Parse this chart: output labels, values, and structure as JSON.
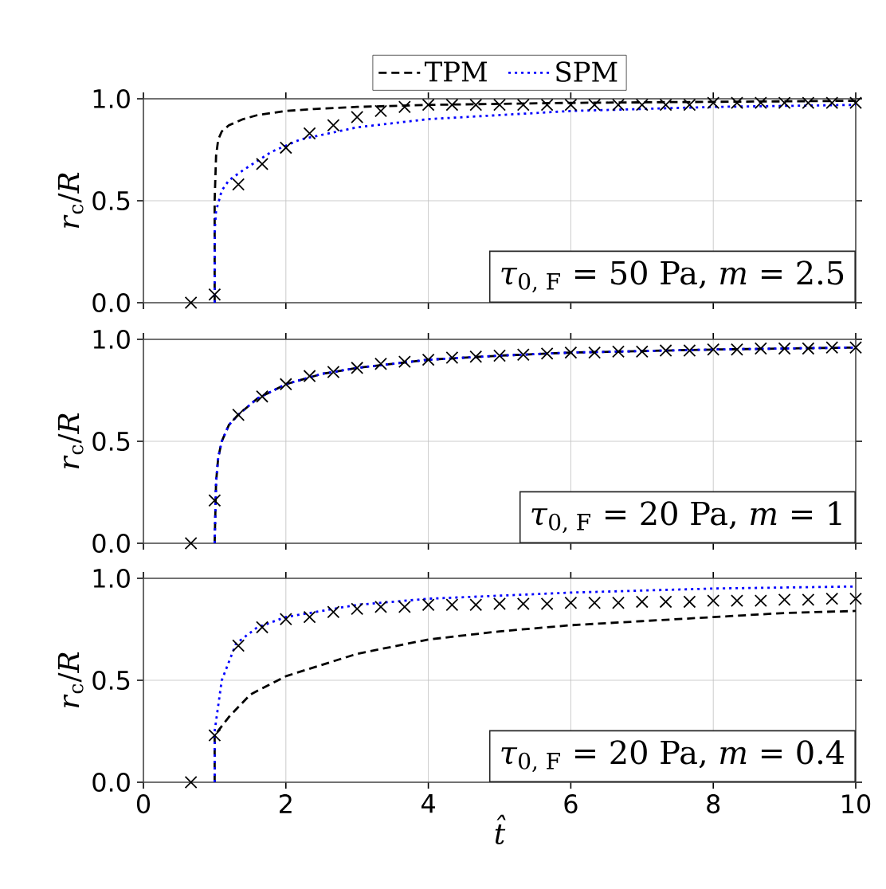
{
  "chart_data": [
    {
      "type": "line",
      "ylabel": "*r*$_{c}$/*R*",
      "xlim": [
        0,
        10
      ],
      "ylim": [
        0,
        1
      ],
      "xticks": [
        0,
        2,
        4,
        6,
        8,
        10
      ],
      "yticks": [
        {
          "value": 0,
          "label": "0.0"
        },
        {
          "value": 0.5,
          "label": "0.5"
        },
        {
          "value": 1,
          "label": "1.0"
        }
      ],
      "grid": true,
      "tick_labels": "y",
      "legend": "top",
      "annotations": [
        "*τ*$_{0, F}$ = 50 Pa, *m* = 2.5"
      ],
      "series": [
        {
          "type": "scatter",
          "marker": "cross",
          "color": "#000000",
          "x": [
            0.667,
            1.0,
            1.333,
            1.667,
            2.0,
            2.333,
            2.667,
            3.0,
            3.333,
            3.667,
            4.0,
            4.333,
            4.667,
            5.0,
            5.333,
            5.667,
            6.0,
            6.333,
            6.667,
            7.0,
            7.333,
            7.667,
            8.0,
            8.333,
            8.667,
            9.0,
            9.333,
            9.667,
            10.0
          ],
          "values": [
            0.0,
            0.04,
            0.58,
            0.68,
            0.76,
            0.83,
            0.87,
            0.91,
            0.94,
            0.96,
            0.97,
            0.97,
            0.97,
            0.97,
            0.97,
            0.97,
            0.97,
            0.97,
            0.97,
            0.97,
            0.97,
            0.97,
            0.98,
            0.98,
            0.98,
            0.98,
            0.98,
            0.98,
            0.98
          ]
        },
        {
          "name": "TPM",
          "line_style": "dashed",
          "color": "#000000",
          "x": [
            1.0,
            1.0,
            1.02,
            1.05,
            1.1,
            1.2,
            1.4,
            1.6,
            2.0,
            2.4,
            3.0,
            4.0,
            6.0,
            8.0,
            10.0
          ],
          "values": [
            0.0,
            0.5,
            0.72,
            0.8,
            0.84,
            0.87,
            0.9,
            0.92,
            0.94,
            0.95,
            0.96,
            0.97,
            0.98,
            0.985,
            0.99
          ]
        },
        {
          "name": "SPM",
          "line_style": "dotted",
          "color": "#0000ff",
          "x": [
            1.0,
            1.0,
            1.02,
            1.1,
            1.2,
            1.4,
            1.8,
            2.2,
            3.0,
            4.0,
            5.0,
            6.0,
            8.0,
            10.0
          ],
          "values": [
            0.0,
            0.35,
            0.45,
            0.55,
            0.6,
            0.65,
            0.74,
            0.8,
            0.86,
            0.9,
            0.92,
            0.94,
            0.96,
            0.97
          ]
        }
      ]
    },
    {
      "type": "line",
      "ylabel": "*r*$_{c}$/*R*",
      "xlim": [
        0,
        10
      ],
      "ylim": [
        0,
        1
      ],
      "xticks": [
        0,
        2,
        4,
        6,
        8,
        10
      ],
      "yticks": [
        {
          "value": 0,
          "label": "0.0"
        },
        {
          "value": 0.5,
          "label": "0.5"
        },
        {
          "value": 1,
          "label": "1.0"
        }
      ],
      "grid": true,
      "tick_labels": "y",
      "annotations": [
        "*τ*$_{0, F}$ = 20 Pa, *m* = 1"
      ],
      "series": [
        {
          "type": "scatter",
          "marker": "cross",
          "color": "#000000",
          "x": [
            0.667,
            1.0,
            1.333,
            1.667,
            2.0,
            2.333,
            2.667,
            3.0,
            3.333,
            3.667,
            4.0,
            4.333,
            4.667,
            5.0,
            5.333,
            5.667,
            6.0,
            6.333,
            6.667,
            7.0,
            7.333,
            7.667,
            8.0,
            8.333,
            8.667,
            9.0,
            9.333,
            9.667,
            10.0
          ],
          "values": [
            0.0,
            0.21,
            0.63,
            0.72,
            0.78,
            0.82,
            0.84,
            0.86,
            0.88,
            0.89,
            0.9,
            0.91,
            0.915,
            0.92,
            0.925,
            0.93,
            0.935,
            0.935,
            0.94,
            0.94,
            0.945,
            0.945,
            0.95,
            0.95,
            0.955,
            0.955,
            0.955,
            0.96,
            0.96
          ]
        },
        {
          "line_style": "dashed",
          "color": "#000000",
          "x": [
            1.0,
            1.02,
            1.05,
            1.1,
            1.2,
            1.33,
            1.6,
            2.0,
            2.5,
            3.0,
            4.0,
            5.0,
            6.0,
            8.0,
            10.0
          ],
          "values": [
            0.0,
            0.3,
            0.42,
            0.5,
            0.58,
            0.63,
            0.71,
            0.78,
            0.83,
            0.86,
            0.9,
            0.92,
            0.935,
            0.95,
            0.96
          ]
        },
        {
          "line_style": "dotted",
          "color": "#0000ff",
          "x": [
            1.0,
            1.02,
            1.05,
            1.1,
            1.2,
            1.33,
            1.6,
            2.0,
            2.5,
            3.0,
            4.0,
            5.0,
            6.0,
            8.0,
            10.0
          ],
          "values": [
            0.0,
            0.3,
            0.42,
            0.5,
            0.58,
            0.63,
            0.71,
            0.78,
            0.83,
            0.86,
            0.9,
            0.92,
            0.935,
            0.95,
            0.96
          ]
        }
      ]
    },
    {
      "type": "line",
      "xlabel": "*t̂*",
      "ylabel": "*r*$_{c}$/*R*",
      "xlim": [
        0,
        10
      ],
      "ylim": [
        0,
        1
      ],
      "xticks": [
        0,
        2,
        4,
        6,
        8,
        10
      ],
      "yticks": [
        {
          "value": 0,
          "label": "0.0"
        },
        {
          "value": 0.5,
          "label": "0.5"
        },
        {
          "value": 1,
          "label": "1.0"
        }
      ],
      "grid": true,
      "annotations": [
        "*τ*$_{0, F}$ = 20 Pa, *m* = 0.4"
      ],
      "series": [
        {
          "type": "scatter",
          "marker": "cross",
          "color": "#000000",
          "x": [
            0.667,
            1.0,
            1.333,
            1.667,
            2.0,
            2.333,
            2.667,
            3.0,
            3.333,
            3.667,
            4.0,
            4.333,
            4.667,
            5.0,
            5.333,
            5.667,
            6.0,
            6.333,
            6.667,
            7.0,
            7.333,
            7.667,
            8.0,
            8.333,
            8.667,
            9.0,
            9.333,
            9.667,
            10.0
          ],
          "values": [
            0.0,
            0.23,
            0.67,
            0.76,
            0.8,
            0.81,
            0.835,
            0.85,
            0.86,
            0.86,
            0.87,
            0.87,
            0.87,
            0.875,
            0.875,
            0.875,
            0.88,
            0.88,
            0.88,
            0.885,
            0.885,
            0.885,
            0.89,
            0.89,
            0.89,
            0.895,
            0.895,
            0.9,
            0.9
          ]
        },
        {
          "line_style": "dashed",
          "color": "#000000",
          "x": [
            1.0,
            1.0,
            1.2,
            1.5,
            2.0,
            3.0,
            4.0,
            5.0,
            6.0,
            7.0,
            8.0,
            9.0,
            10.0
          ],
          "values": [
            0.0,
            0.23,
            0.32,
            0.43,
            0.52,
            0.63,
            0.7,
            0.74,
            0.77,
            0.79,
            0.81,
            0.83,
            0.84
          ]
        },
        {
          "line_style": "dotted",
          "color": "#0000ff",
          "x": [
            1.0,
            1.0,
            1.1,
            1.3,
            1.6,
            2.0,
            3.0,
            4.0,
            6.0,
            8.0,
            10.0
          ],
          "values": [
            0.0,
            0.25,
            0.5,
            0.68,
            0.76,
            0.81,
            0.87,
            0.9,
            0.93,
            0.95,
            0.96
          ]
        }
      ]
    }
  ]
}
